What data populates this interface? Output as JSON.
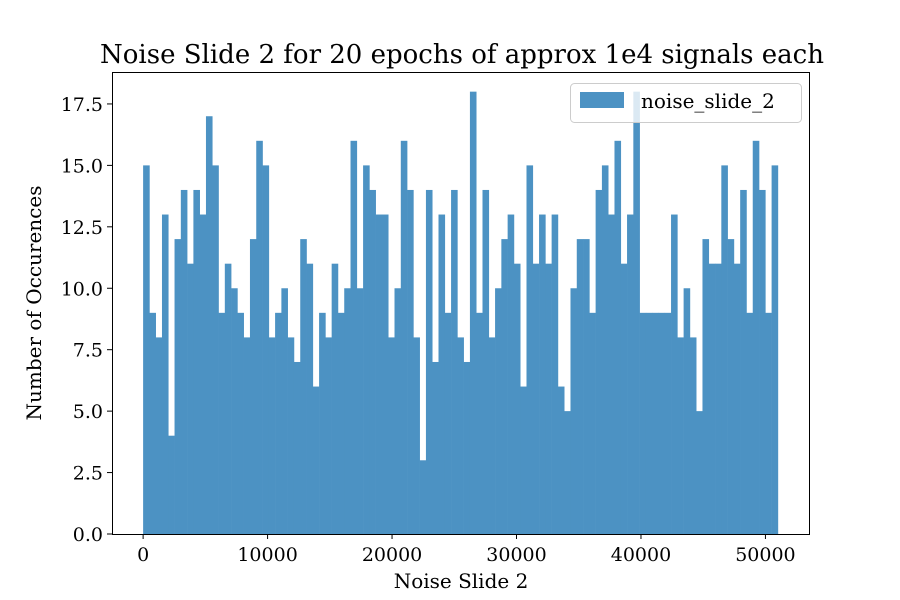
{
  "chart_data": {
    "type": "bar",
    "title": "Noise Slide 2 for 20 epochs of approx 1e4 signals each",
    "xlabel": "Noise Slide 2",
    "ylabel": "Number of Occurences",
    "xlim": [
      -2500,
      53500
    ],
    "ylim": [
      0,
      18.8
    ],
    "x_ticks": [
      0,
      10000,
      20000,
      30000,
      40000,
      50000
    ],
    "x_tick_labels": [
      "0",
      "10000",
      "20000",
      "30000",
      "40000",
      "50000"
    ],
    "y_ticks": [
      0,
      2.5,
      5,
      7.5,
      10,
      12.5,
      15,
      17.5
    ],
    "y_tick_labels": [
      "0.0",
      "2.5",
      "5.0",
      "7.5",
      "10.0",
      "12.5",
      "15.0",
      "17.5"
    ],
    "grid": false,
    "legend_position": "top-right",
    "bin_range": [
      0,
      51000
    ],
    "series": [
      {
        "name": "noise_slide_2",
        "color": "#4c92c3",
        "values": [
          15,
          9,
          8,
          13,
          4,
          12,
          14,
          11,
          14,
          13,
          17,
          15,
          9,
          11,
          10,
          9,
          8,
          12,
          16,
          15,
          8,
          9,
          10,
          8,
          7,
          12,
          11,
          6,
          9,
          8,
          11,
          9,
          10,
          16,
          10,
          15,
          14,
          13,
          13,
          8,
          10,
          16,
          14,
          8,
          3,
          14,
          7,
          13,
          9,
          14,
          8,
          7,
          18,
          9,
          14,
          8,
          10,
          12,
          13,
          11,
          6,
          15,
          11,
          13,
          11,
          13,
          6,
          5,
          10,
          12,
          12,
          9,
          14,
          15,
          13,
          16,
          11,
          13,
          18,
          9,
          9,
          9,
          9,
          9,
          13,
          8,
          10,
          8,
          5,
          12,
          11,
          11,
          15,
          12,
          11,
          14,
          9,
          16,
          14,
          9,
          15
        ]
      }
    ]
  }
}
